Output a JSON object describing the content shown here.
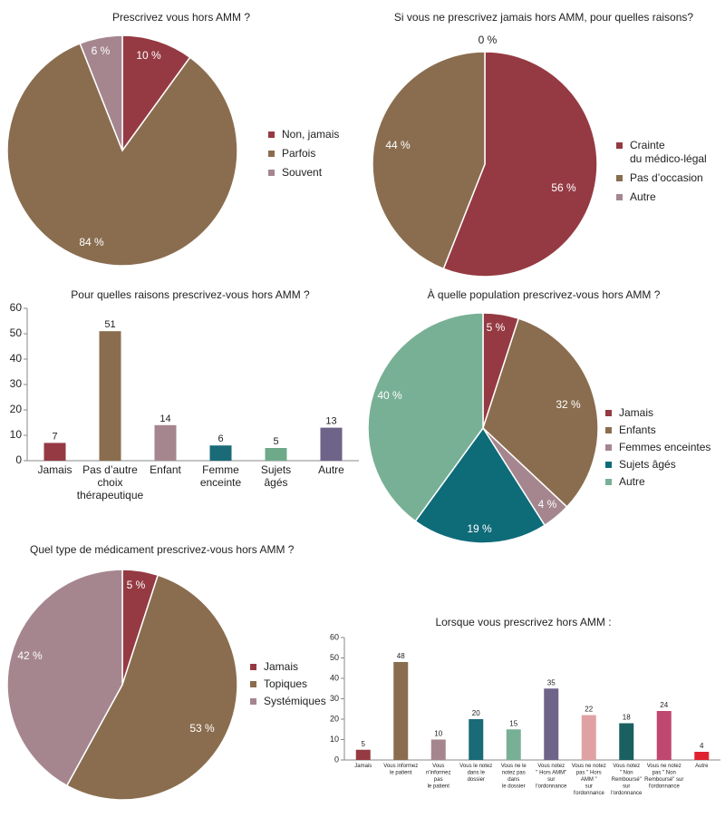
{
  "chart_data": [
    {
      "type": "pie",
      "title": "Prescrivez vous hors AMM ?",
      "categories": [
        "Non, jamais",
        "Parfois",
        "Souvent"
      ],
      "values": [
        10,
        84,
        6
      ],
      "labels": [
        "10 %",
        "84 %",
        "6 %"
      ],
      "colors": [
        "#953a43",
        "#8a6d4f",
        "#a5868f"
      ],
      "legend_position": "right"
    },
    {
      "type": "pie",
      "title": "Si vous ne prescrivez jamais hors AMM, pour quelles raisons?",
      "categories": [
        "Crainte\ndu médico-légal",
        "Pas d’occasion",
        "Autre"
      ],
      "values": [
        56,
        44,
        0
      ],
      "labels": [
        "56 %",
        "44 %",
        "0 %"
      ],
      "colors": [
        "#953a43",
        "#8a6d4f",
        "#a5868f"
      ],
      "legend_position": "right"
    },
    {
      "type": "bar",
      "title": "Pour quelles raisons prescrivez-vous hors AMM ?",
      "categories": [
        "Jamais",
        "Pas d’autre\nchoix\nthérapeutique",
        "Enfant",
        "Femme\nenceinte",
        "Sujets\nâgés",
        "Autre"
      ],
      "values": [
        7,
        51,
        14,
        6,
        5,
        13
      ],
      "colors": [
        "#953a43",
        "#8a6d4f",
        "#a5868f",
        "#1a6a78",
        "#6ea98a",
        "#6e6389"
      ],
      "ylim": [
        0,
        60
      ],
      "yticks": [
        0,
        10,
        20,
        30,
        40,
        50,
        60
      ]
    },
    {
      "type": "pie",
      "title": "À quelle population prescrivez-vous hors AMM ?",
      "categories": [
        "Jamais",
        "Enfants",
        "Femmes enceintes",
        "Sujets âgés",
        "Autre"
      ],
      "values": [
        5,
        32,
        4,
        19,
        40
      ],
      "labels": [
        "5 %",
        "32 %",
        "4 %",
        "19 %",
        "40 %"
      ],
      "colors": [
        "#953a43",
        "#8a6d4f",
        "#a5868f",
        "#0e6b78",
        "#78b096"
      ],
      "legend_position": "right"
    },
    {
      "type": "pie",
      "title": "Quel type de médicament prescrivez-vous hors AMM ?",
      "categories": [
        "Jamais",
        "Topiques",
        "Systémiques"
      ],
      "values": [
        5,
        53,
        42
      ],
      "labels": [
        "5 %",
        "53 %",
        "42 %"
      ],
      "colors": [
        "#953a43",
        "#8a6d4f",
        "#a5868f"
      ],
      "legend_position": "right"
    },
    {
      "type": "bar",
      "title": "Lorsque vous prescrivez hors AMM :",
      "categories": [
        "Jamais",
        "Vous informez\nle patient",
        "Vous\nn'informez\npas\nle patient",
        "Vous le notez\ndans le\ndossier",
        "Vous ne le\nnotez pas\ndans\nle dossier",
        "Vous notez\n\" Hors AMM\"\nsur\nl'ordonnance",
        "Vous ne notez\npas \" Hors\nAMM \"\nsur\nl'ordonnance",
        "Vous notez\n\" Non\nRemboursé\"\nsur\nl'ordonnance",
        "Vous ne notez\npas \" Non\nRemboursé\" sur\nl'ordonnance",
        "Autre"
      ],
      "values": [
        5,
        48,
        10,
        20,
        15,
        35,
        22,
        18,
        24,
        4
      ],
      "colors": [
        "#953a43",
        "#8a6d4f",
        "#a5868f",
        "#1a6a78",
        "#78b096",
        "#6e6389",
        "#e0a1a4",
        "#1a6060",
        "#c0476f",
        "#e02230"
      ],
      "ylim": [
        0,
        60
      ],
      "yticks": [
        0,
        10,
        20,
        30,
        40,
        50,
        60
      ]
    }
  ]
}
